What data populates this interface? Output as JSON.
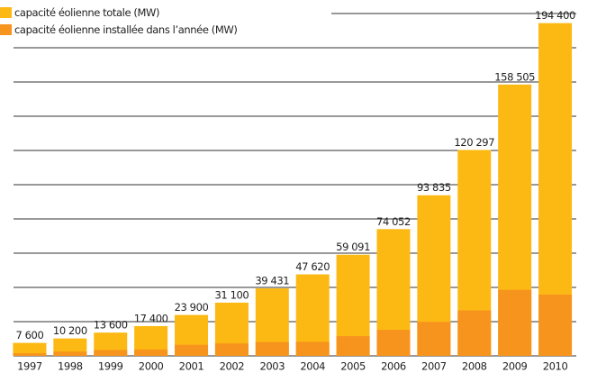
{
  "chart_data": {
    "type": "bar",
    "categories": [
      "1997",
      "1998",
      "1999",
      "2000",
      "2001",
      "2002",
      "2003",
      "2004",
      "2005",
      "2006",
      "2007",
      "2008",
      "2009",
      "2010"
    ],
    "series": [
      {
        "name": "capacité éolienne totale (MW)",
        "color": "#fdb913",
        "values": [
          7600,
          10200,
          13600,
          17400,
          23900,
          31100,
          39431,
          47620,
          59091,
          74052,
          93835,
          120297,
          158505,
          194400
        ],
        "value_labels": [
          "7 600",
          "10 200",
          "13 600",
          "17 400",
          "23 900",
          "31 100",
          "39 431",
          "47 620",
          "59 091",
          "74 052",
          "93 835",
          "120 297",
          "158 505",
          "194 400"
        ]
      },
      {
        "name": "capacité éolienne installée dans l’année (MW)",
        "color": "#f7941d",
        "values": [
          1530,
          2520,
          3440,
          3760,
          6500,
          7270,
          8133,
          8207,
          11531,
          15245,
          19866,
          26560,
          38610,
          35802
        ]
      }
    ],
    "ylim": [
      0,
      200000
    ],
    "yticks": [
      0,
      20000,
      40000,
      60000,
      80000,
      100000,
      120000,
      140000,
      160000,
      180000,
      200000
    ],
    "grid": true
  }
}
